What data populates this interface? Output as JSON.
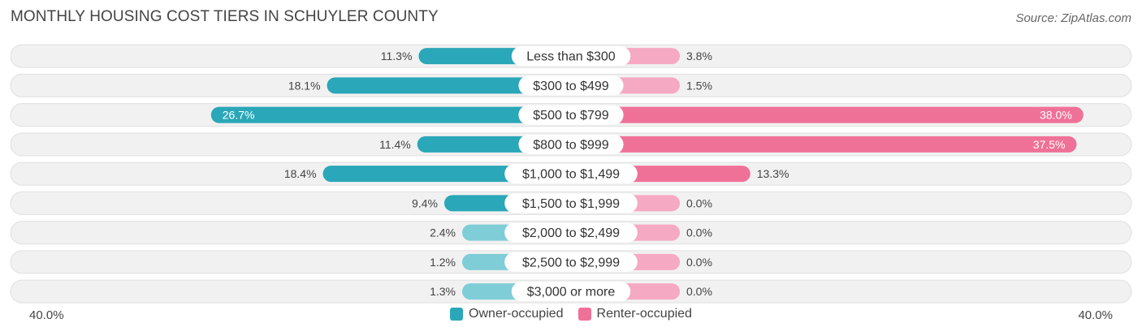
{
  "title": "MONTHLY HOUSING COST TIERS IN SCHUYLER COUNTY",
  "source": "Source: ZipAtlas.com",
  "colors": {
    "owner_strong": "#2aa7b8",
    "owner_light": "#7fcdd6",
    "renter_strong": "#f07198",
    "renter_light": "#f6a9c2",
    "row_bg": "#f1f1f1",
    "row_border": "#e0e0e0"
  },
  "chart_data": {
    "type": "bar",
    "orientation": "horizontal-diverging",
    "categories": [
      "Less than $300",
      "$300 to $499",
      "$500 to $799",
      "$800 to $999",
      "$1,000 to $1,499",
      "$1,500 to $1,999",
      "$2,000 to $2,499",
      "$2,500 to $2,999",
      "$3,000 or more"
    ],
    "series": [
      {
        "name": "Owner-occupied",
        "values": [
          11.3,
          18.1,
          26.7,
          11.4,
          18.4,
          9.4,
          2.4,
          1.2,
          1.3
        ]
      },
      {
        "name": "Renter-occupied",
        "values": [
          3.8,
          1.5,
          38.0,
          37.5,
          13.3,
          0.0,
          0.0,
          0.0,
          0.0
        ]
      }
    ],
    "value_labels": {
      "owner": [
        "11.3%",
        "18.1%",
        "26.7%",
        "11.4%",
        "18.4%",
        "9.4%",
        "2.4%",
        "1.2%",
        "1.3%"
      ],
      "renter": [
        "3.8%",
        "1.5%",
        "38.0%",
        "37.5%",
        "13.3%",
        "0.0%",
        "0.0%",
        "0.0%",
        "0.0%"
      ]
    },
    "xlim": [
      -40,
      40
    ],
    "axis_min_label": "40.0%",
    "axis_max_label": "40.0%",
    "legend_position": "bottom-center"
  }
}
